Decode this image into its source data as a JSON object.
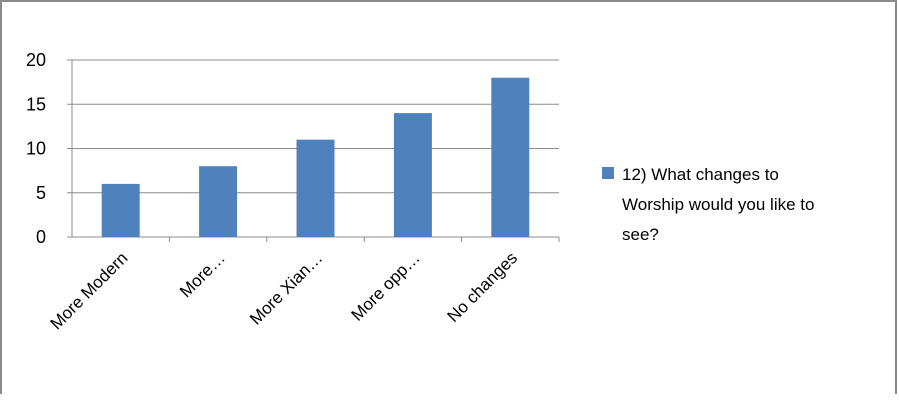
{
  "chart_data": {
    "type": "bar",
    "categories": [
      "More Modern",
      "More…",
      "More Xian…",
      "More opp…",
      "No changes"
    ],
    "series": [
      {
        "name": "12) What changes to Worship would you like to see?",
        "values": [
          6,
          8,
          11,
          14,
          18
        ],
        "color": "#4f81bd"
      }
    ],
    "yticks": [
      "0",
      "5",
      "10",
      "15",
      "20"
    ],
    "ylim": [
      0,
      20
    ],
    "grid": true,
    "legend_position": "right",
    "legend_lines": [
      "12) What changes to",
      "Worship would you like to",
      "see?"
    ]
  }
}
